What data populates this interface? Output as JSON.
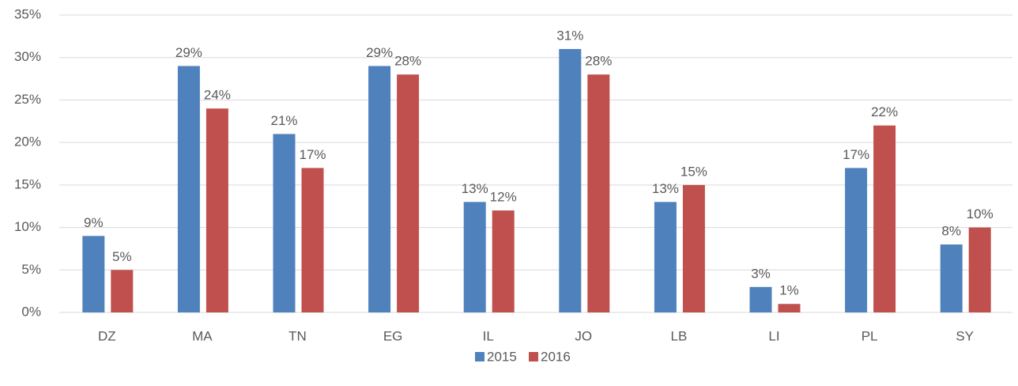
{
  "chart_data": {
    "type": "bar",
    "categories": [
      "DZ",
      "MA",
      "TN",
      "EG",
      "IL",
      "JO",
      "LB",
      "LI",
      "PL",
      "SY"
    ],
    "series": [
      {
        "name": "2015",
        "color": "#4f81bd",
        "values": [
          9,
          29,
          21,
          29,
          13,
          31,
          13,
          3,
          17,
          8
        ],
        "value_labels": [
          "9%",
          "29%",
          "21%",
          "29%",
          "13%",
          "31%",
          "13%",
          "3%",
          "17%",
          "8%"
        ]
      },
      {
        "name": "2016",
        "color": "#c0504d",
        "values": [
          5,
          24,
          17,
          28,
          12,
          28,
          15,
          1,
          22,
          10
        ],
        "value_labels": [
          "5%",
          "24%",
          "17%",
          "28%",
          "12%",
          "28%",
          "15%",
          "1%",
          "22%",
          "10%"
        ]
      }
    ],
    "ylim": [
      0,
      35
    ],
    "yticks": [
      {
        "value": 0,
        "label": "0%"
      },
      {
        "value": 5,
        "label": "5%"
      },
      {
        "value": 10,
        "label": "10%"
      },
      {
        "value": 15,
        "label": "15%"
      },
      {
        "value": 20,
        "label": "20%"
      },
      {
        "value": 25,
        "label": "25%"
      },
      {
        "value": 30,
        "label": "30%"
      },
      {
        "value": 35,
        "label": "35%"
      }
    ],
    "grid": true,
    "legend": "bottom"
  }
}
